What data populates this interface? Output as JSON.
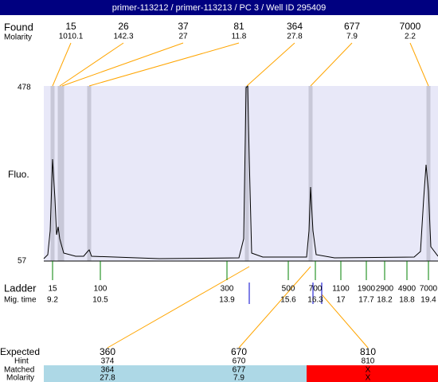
{
  "header": {
    "title": "primer-113212 / primer-113213 / PC 3 / Well ID 295409"
  },
  "found": {
    "label": "Found",
    "molarity_label": "Molarity",
    "peaks": [
      {
        "size": 15,
        "molarity": 1010.1
      },
      {
        "size": 26,
        "molarity": 142.3
      },
      {
        "size": 37,
        "molarity": 27
      },
      {
        "size": 81,
        "molarity": 11.8
      },
      {
        "size": 364,
        "molarity": 27.8
      },
      {
        "size": 677,
        "molarity": 7.9
      },
      {
        "size": 7000,
        "molarity": 2.2
      }
    ]
  },
  "plot": {
    "y_label": "Fluo.",
    "y_max": 478,
    "y_min": 57
  },
  "ladder": {
    "label": "Ladder",
    "time_label": "Mig. time",
    "entries": [
      {
        "size": 15,
        "time": 9.2
      },
      {
        "size": 100,
        "time": 10.5
      },
      {
        "size": 300,
        "time": 13.9
      },
      {
        "size": 500,
        "time": 15.6
      },
      {
        "size": 700,
        "time": 16.3
      },
      {
        "size": 1100,
        "time": 17
      },
      {
        "size": 1900,
        "time": 17.7
      },
      {
        "size": 2900,
        "time": 18.2
      },
      {
        "size": 4900,
        "time": 18.8
      },
      {
        "size": 7000,
        "time": 19.4
      }
    ]
  },
  "expected": {
    "label": "Expected",
    "hint_label": "Hint",
    "matched_label": "Matched",
    "molarity_label": "Molarity",
    "columns": [
      {
        "expected": 360,
        "hint": 374,
        "matched": 364,
        "molarity": 27.8
      },
      {
        "expected": 670,
        "hint": 670,
        "matched": 677,
        "molarity": 7.9
      },
      {
        "expected": 810,
        "hint": 810,
        "matched": "X",
        "molarity": "X"
      }
    ]
  }
}
